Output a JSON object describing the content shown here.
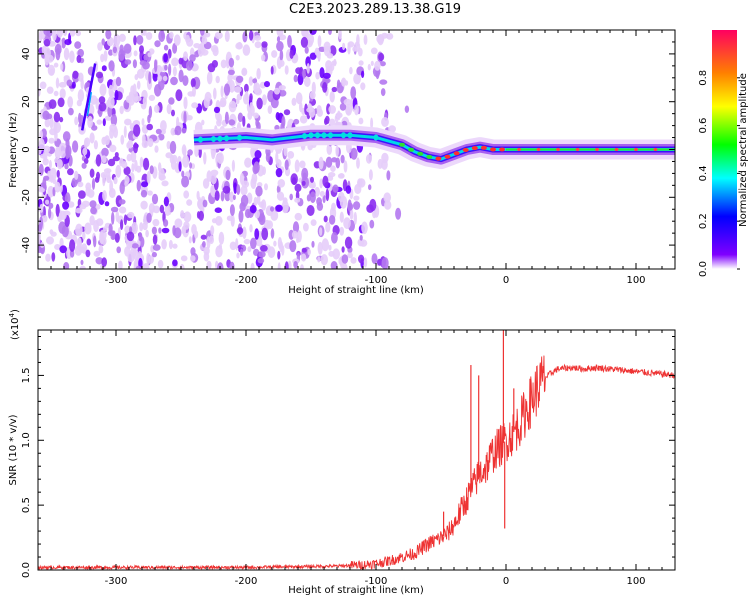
{
  "title": "C2E3.2023.289.13.38.G19",
  "chart_data": [
    {
      "type": "heatmap",
      "xlabel": "Height of straight line (km)",
      "ylabel": "Frequency (Hz)",
      "xlim": [
        -360,
        130
      ],
      "ylim": [
        -50,
        50
      ],
      "xticks": [
        -300,
        -200,
        -100,
        0,
        100
      ],
      "yticks": [
        -40,
        -20,
        0,
        20,
        40
      ],
      "colorbar": {
        "label": "Normalized spectral amplitude",
        "range": [
          0,
          1
        ],
        "ticks": [
          "0.0",
          "0.2",
          "0.4",
          "0.6",
          "0.8"
        ],
        "colors": [
          "#ffffff",
          "#7f00ff",
          "#0000ff",
          "#00ffff",
          "#00ff00",
          "#ffff00",
          "#ff8000",
          "#ff0000"
        ]
      },
      "ridge": {
        "x": [
          -240,
          -200,
          -180,
          -150,
          -120,
          -100,
          -80,
          -70,
          -60,
          -50,
          -40,
          -30,
          -20,
          -10,
          0,
          20,
          60,
          100,
          130
        ],
        "y": [
          4,
          5,
          4,
          6,
          6,
          5,
          2,
          -1,
          -3,
          -4,
          -2,
          0,
          1,
          0,
          0,
          0,
          0,
          0,
          0
        ]
      }
    },
    {
      "type": "line",
      "xlabel": "Height of straight line (km)",
      "ylabel": "SNR (10 * v/v)",
      "yscale_label": "(x10",
      "yscale_exp": "4",
      "yscale_close": ")",
      "xlim": [
        -360,
        130
      ],
      "ylim": [
        0,
        1.85
      ],
      "xticks": [
        -300,
        -200,
        -100,
        0,
        100
      ],
      "yticks": [
        "0.0",
        "0.5",
        "1.0",
        "1.5"
      ],
      "color": "#ee3333",
      "series": [
        {
          "x": [
            -360,
            -300,
            -200,
            -130,
            -110,
            -100,
            -90,
            -80,
            -70,
            -60,
            -50,
            -45,
            -40,
            -35,
            -30,
            -25,
            -20,
            -15,
            -10,
            -5,
            0,
            5,
            10,
            15,
            20,
            25,
            30,
            35,
            40,
            50,
            60,
            70,
            80,
            90,
            100,
            110,
            120,
            130
          ],
          "values": [
            0.02,
            0.02,
            0.02,
            0.03,
            0.04,
            0.05,
            0.07,
            0.1,
            0.13,
            0.2,
            0.25,
            0.28,
            0.35,
            0.45,
            0.55,
            0.65,
            0.75,
            0.8,
            0.9,
            0.95,
            1.0,
            1.05,
            1.12,
            1.22,
            1.32,
            1.42,
            1.48,
            1.52,
            1.55,
            1.56,
            1.55,
            1.56,
            1.55,
            1.54,
            1.53,
            1.52,
            1.51,
            1.5
          ]
        }
      ],
      "spikes": [
        {
          "x": -48,
          "y": 0.45
        },
        {
          "x": -27,
          "y": 1.58
        },
        {
          "x": -21,
          "y": 1.5
        },
        {
          "x": -2,
          "y": 1.88
        },
        {
          "x": -1,
          "y": 0.32
        },
        {
          "x": 6,
          "y": 1.4
        }
      ]
    }
  ]
}
